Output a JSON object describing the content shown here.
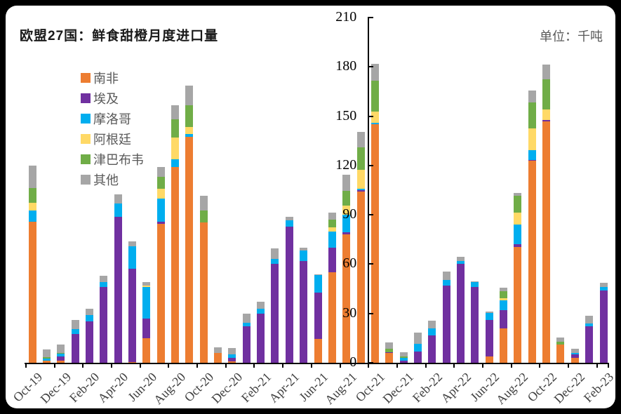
{
  "frame": {
    "background": "#000000",
    "card_background": "#ffffff"
  },
  "header": {
    "title": "欧盟27国：鲜食甜橙月度进口量",
    "unit_label": "单位：千吨"
  },
  "chart_data": {
    "type": "bar",
    "stacked": true,
    "title": "欧盟27国：鲜食甜橙月度进口量",
    "unit": "千吨",
    "grid": false,
    "legend_position": "upper-left-vertical",
    "ylim": [
      0,
      210
    ],
    "ytick_step": 30,
    "x_label_interval": 2,
    "axis_cross_after_index": 23,
    "categories": [
      "Oct-19",
      "Nov-19",
      "Dec-19",
      "Jan-20",
      "Feb-20",
      "Mar-20",
      "Apr-20",
      "May-20",
      "Jun-20",
      "Jul-20",
      "Aug-20",
      "Sep-20",
      "Oct-20",
      "Nov-20",
      "Dec-20",
      "Jan-21",
      "Feb-21",
      "Mar-21",
      "Apr-21",
      "May-21",
      "Jun-21",
      "Jul-21",
      "Aug-21",
      "Sep-21",
      "Oct-21",
      "Nov-21",
      "Dec-21",
      "Jan-22",
      "Feb-22",
      "Mar-22",
      "Apr-22",
      "May-22",
      "Jun-22",
      "Jul-22",
      "Aug-22",
      "Sep-22",
      "Oct-22",
      "Nov-22",
      "Dec-22",
      "Jan-23",
      "Feb-23"
    ],
    "series": [
      {
        "name": "南非",
        "color": "#ED7D31",
        "values": [
          86,
          1.5,
          1.5,
          0,
          0,
          0,
          0,
          0.5,
          15,
          84.5,
          119,
          137.5,
          85.5,
          6,
          1,
          0,
          0,
          0,
          0,
          0,
          14.5,
          55,
          78,
          104,
          145,
          6,
          0,
          0,
          0,
          0,
          0,
          0,
          4,
          21,
          70.5,
          123,
          147,
          11,
          3,
          0,
          0
        ]
      },
      {
        "name": "埃及",
        "color": "#7030A0",
        "values": [
          0,
          0,
          2.5,
          17.5,
          25,
          46,
          89,
          56.5,
          12,
          1.5,
          0,
          0,
          0,
          0,
          2,
          22,
          30,
          60,
          83,
          62,
          28,
          15,
          1.5,
          1,
          0,
          0.5,
          1.5,
          7,
          16.5,
          47,
          60,
          46,
          22,
          11,
          1.5,
          0.5,
          0.5,
          0,
          2,
          22,
          44
        ]
      },
      {
        "name": "摩洛哥",
        "color": "#00AEEF",
        "values": [
          6.5,
          1,
          1.5,
          3,
          4,
          3,
          8,
          14,
          19,
          14,
          5,
          1.5,
          0,
          0,
          2,
          2.5,
          3,
          3,
          3.5,
          6.5,
          11,
          10,
          10.5,
          1,
          1,
          0,
          1.5,
          4.5,
          4.5,
          3.5,
          2,
          3,
          4.5,
          6,
          12,
          6,
          0,
          0,
          1,
          2,
          2
        ]
      },
      {
        "name": "阿根廷",
        "color": "#FFD966",
        "values": [
          5,
          0,
          0,
          0,
          0,
          0,
          0,
          0,
          1,
          6,
          13,
          4.5,
          0,
          0,
          0,
          0,
          0,
          0,
          0,
          0,
          0,
          2.5,
          5.5,
          11.5,
          7,
          0,
          0,
          0,
          0,
          0,
          0,
          0,
          0,
          1.5,
          7.5,
          13,
          6.5,
          0,
          0,
          0,
          0
        ]
      },
      {
        "name": "津巴布韦",
        "color": "#70AD47",
        "values": [
          9,
          1,
          0.5,
          0,
          0,
          0,
          0,
          0,
          0,
          7,
          11,
          13,
          7,
          0,
          0,
          0,
          0,
          0,
          0,
          0,
          0,
          4.5,
          9,
          13.5,
          18.5,
          2,
          1,
          0,
          0,
          0,
          0,
          0,
          0,
          4,
          10,
          16,
          18.5,
          2,
          0,
          0,
          0
        ]
      },
      {
        "name": "其他",
        "color": "#A6A6A6",
        "values": [
          13.5,
          4.5,
          5,
          5.5,
          4,
          4,
          5.5,
          3,
          2,
          6,
          8.5,
          12,
          9,
          3.5,
          4,
          5.5,
          4,
          6.5,
          2.5,
          1.5,
          0.5,
          4.5,
          10,
          9.5,
          10.5,
          4,
          2.5,
          7,
          4.5,
          5,
          2.5,
          0.5,
          0.5,
          2,
          2,
          7,
          9,
          2.5,
          2.5,
          4.5,
          2.5
        ]
      }
    ]
  }
}
